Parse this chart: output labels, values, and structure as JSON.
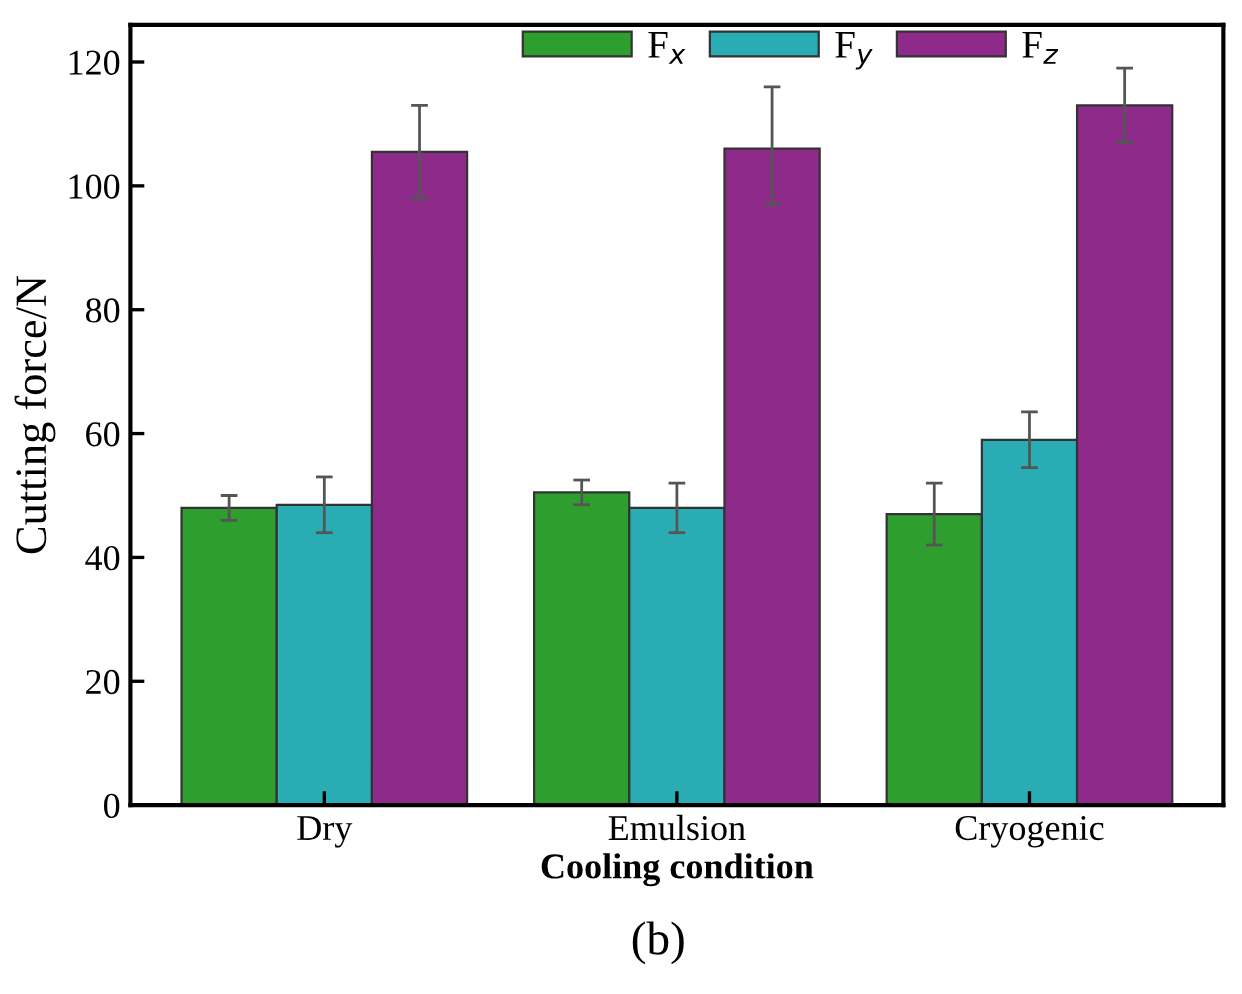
{
  "chart_data": {
    "type": "bar",
    "xlabel": "Cooling condition",
    "ylabel": "Cutting force/N",
    "categories": [
      "Dry",
      "Emulsion",
      "Cryogenic"
    ],
    "series": [
      {
        "name": "F$_{x}$",
        "color": "#2e9e2e",
        "values": [
          48,
          50.5,
          47
        ],
        "errors": [
          2,
          2,
          5
        ]
      },
      {
        "name": "F$_{y}$",
        "color": "#2aacb4",
        "values": [
          48.5,
          48,
          59
        ],
        "errors": [
          4.5,
          4,
          4.5
        ]
      },
      {
        "name": "F$_{z}$",
        "color": "#8e2a8a",
        "values": [
          105.5,
          106,
          113
        ],
        "errors": [
          7.5,
          [
            97,
            116
          ],
          6
        ]
      }
    ],
    "ylim": [
      0,
      126
    ],
    "yticks": [
      0,
      20,
      40,
      60,
      80,
      100,
      120
    ],
    "grid": false,
    "legend": "top right",
    "annotations": [
      "(b)"
    ]
  }
}
